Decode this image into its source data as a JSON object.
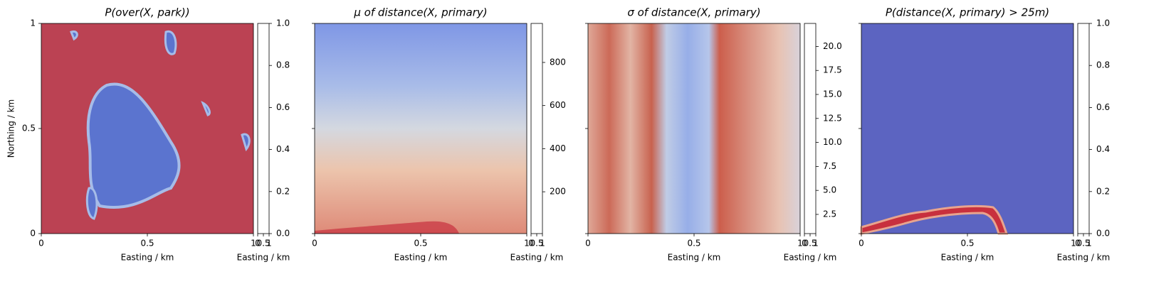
{
  "chart_data": [
    {
      "type": "heatmap",
      "title": "P(over(X, park))",
      "xlabel": "Easting / km",
      "ylabel": "Northing / km",
      "xlim": [
        0,
        1
      ],
      "xticks": [
        0,
        0.5,
        1
      ],
      "ylim": [
        0,
        1
      ],
      "yticks": [
        0,
        0.5,
        1
      ],
      "show_ytick_labels": true,
      "colorbar": {
        "clim": [
          0,
          1
        ],
        "ticks": [
          {
            "value": 0,
            "label": "0.0"
          },
          0.2,
          0.4,
          0.6,
          0.8,
          {
            "value": 1,
            "label": "1.0"
          }
        ],
        "xlabel": "Easting / km",
        "xlim": [
          0,
          1
        ],
        "xticks": [
          0,
          0.5,
          1
        ]
      }
    },
    {
      "type": "heatmap",
      "title": "μ of distance(X, primary)",
      "xlabel": "Easting / km",
      "xlim": [
        0,
        1
      ],
      "xticks": [
        0,
        0.5,
        1
      ],
      "ylim": [
        0,
        1
      ],
      "yticks": [
        0,
        0.5,
        1
      ],
      "show_ytick_labels": false,
      "colorbar": {
        "clim": [
          6,
          981
        ],
        "ticks": [
          200,
          400,
          600,
          800
        ],
        "xlabel": "Easting / km",
        "xlim": [
          0,
          1
        ],
        "xticks": [
          0,
          0.5,
          1
        ]
      }
    },
    {
      "type": "heatmap",
      "title": "σ of distance(X, primary)",
      "xlabel": "Easting / km",
      "xlim": [
        0,
        1
      ],
      "xticks": [
        0,
        0.5,
        1
      ],
      "ylim": [
        0,
        1
      ],
      "yticks": [
        0,
        0.5,
        1
      ],
      "show_ytick_labels": false,
      "colorbar": {
        "clim": [
          0.5,
          22.4
        ],
        "ticks": [
          2.5,
          {
            "value": 5,
            "label": "5.0"
          },
          7.5,
          {
            "value": 10,
            "label": "10.0"
          },
          12.5,
          {
            "value": 15,
            "label": "15.0"
          },
          17.5,
          {
            "value": 20,
            "label": "20.0"
          }
        ],
        "xlabel": "Easting / km",
        "xlim": [
          0,
          1
        ],
        "xticks": [
          0,
          0.5,
          1
        ]
      }
    },
    {
      "type": "heatmap",
      "title": "P(distance(X, primary) > 25m)",
      "xlabel": "Easting / km",
      "xlim": [
        0,
        1
      ],
      "xticks": [
        0,
        0.5,
        1
      ],
      "ylim": [
        0,
        1
      ],
      "yticks": [
        0,
        0.5,
        1
      ],
      "show_ytick_labels": false,
      "colorbar": {
        "clim": [
          0,
          1
        ],
        "ticks": [
          {
            "value": 0,
            "label": "0.0"
          },
          0.2,
          0.4,
          0.6,
          0.8,
          {
            "value": 1,
            "label": "1.0"
          }
        ],
        "xlabel": "Easting / km",
        "xlim": [
          0,
          1
        ],
        "xticks": [
          0,
          0.5,
          1
        ]
      }
    }
  ]
}
